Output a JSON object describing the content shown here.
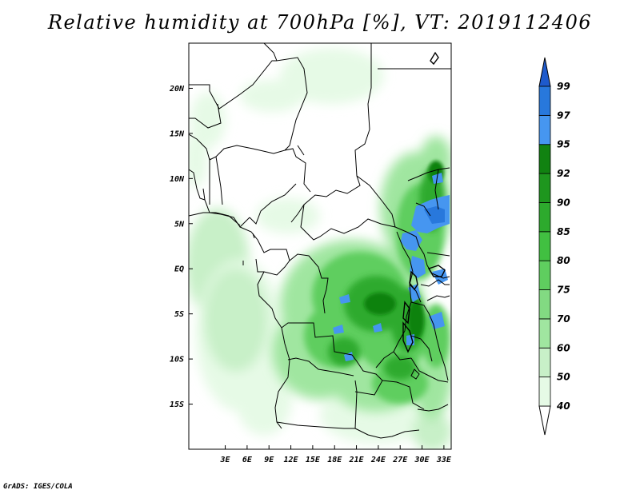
{
  "title": "Relative humidity at 700hPa [%], VT: 2019112406",
  "credit": "GrADS: IGES/COLA",
  "map": {
    "lon_range": [
      -2,
      34
    ],
    "lat_range": [
      -20,
      25
    ],
    "x_ticks": [
      {
        "lon": 3,
        "label": "3E"
      },
      {
        "lon": 6,
        "label": "6E"
      },
      {
        "lon": 9,
        "label": "9E"
      },
      {
        "lon": 12,
        "label": "12E"
      },
      {
        "lon": 15,
        "label": "15E"
      },
      {
        "lon": 18,
        "label": "18E"
      },
      {
        "lon": 21,
        "label": "21E"
      },
      {
        "lon": 24,
        "label": "24E"
      },
      {
        "lon": 27,
        "label": "27E"
      },
      {
        "lon": 30,
        "label": "30E"
      },
      {
        "lon": 33,
        "label": "33E"
      }
    ],
    "y_ticks": [
      {
        "lat": 20,
        "label": "20N"
      },
      {
        "lat": 15,
        "label": "15N"
      },
      {
        "lat": 10,
        "label": "10N"
      },
      {
        "lat": 5,
        "label": "5N"
      },
      {
        "lat": 0,
        "label": "EQ"
      },
      {
        "lat": -5,
        "label": "5S"
      },
      {
        "lat": -10,
        "label": "10S"
      },
      {
        "lat": -15,
        "label": "15S"
      }
    ]
  },
  "colorbar": {
    "levels": [
      "40",
      "50",
      "60",
      "70",
      "75",
      "80",
      "85",
      "90",
      "92",
      "95",
      "97",
      "99"
    ],
    "colors": [
      "#ffffff",
      "#e6fae6",
      "#c8f0c8",
      "#a0e6a0",
      "#82da82",
      "#5fce5f",
      "#41c041",
      "#2daa2d",
      "#1e961e",
      "#118211",
      "#4696f0",
      "#2878dc",
      "#1e5acc"
    ]
  },
  "chart_data": {
    "type": "heatmap",
    "title": "Relative humidity at 700hPa [%], VT: 2019112406",
    "variable": "Relative humidity",
    "units": "%",
    "pressure_level": "700hPa",
    "valid_time": "2019112406",
    "contour_levels": [
      40,
      50,
      60,
      70,
      75,
      80,
      85,
      90,
      92,
      95,
      97,
      99
    ],
    "lon_range": [
      -2,
      34
    ],
    "lat_range": [
      -20,
      25
    ],
    "regions": [
      {
        "lon": [
          -2,
          12
        ],
        "lat": [
          -18,
          5
        ],
        "value": 55
      },
      {
        "lon": [
          1,
          12
        ],
        "lat": [
          -15,
          -2
        ],
        "value": 62
      },
      {
        "lon": [
          14,
          34
        ],
        "lat": [
          -12,
          6
        ],
        "value": 82
      },
      {
        "lon": [
          20,
          31
        ],
        "lat": [
          -9,
          4
        ],
        "value": 88
      },
      {
        "lon": [
          29,
          34
        ],
        "lat": [
          -8,
          13
        ],
        "value": 92
      },
      {
        "lon": [
          30,
          34
        ],
        "lat": [
          1,
          7
        ],
        "value": 97
      },
      {
        "lon": [
          27,
          31
        ],
        "lat": [
          -2,
          4
        ],
        "value": 97
      },
      {
        "lon": [
          16,
          34
        ],
        "lat": [
          -20,
          -12
        ],
        "value": 68
      },
      {
        "lon": [
          4,
          24
        ],
        "lat": [
          15,
          25
        ],
        "value": 45
      }
    ]
  }
}
